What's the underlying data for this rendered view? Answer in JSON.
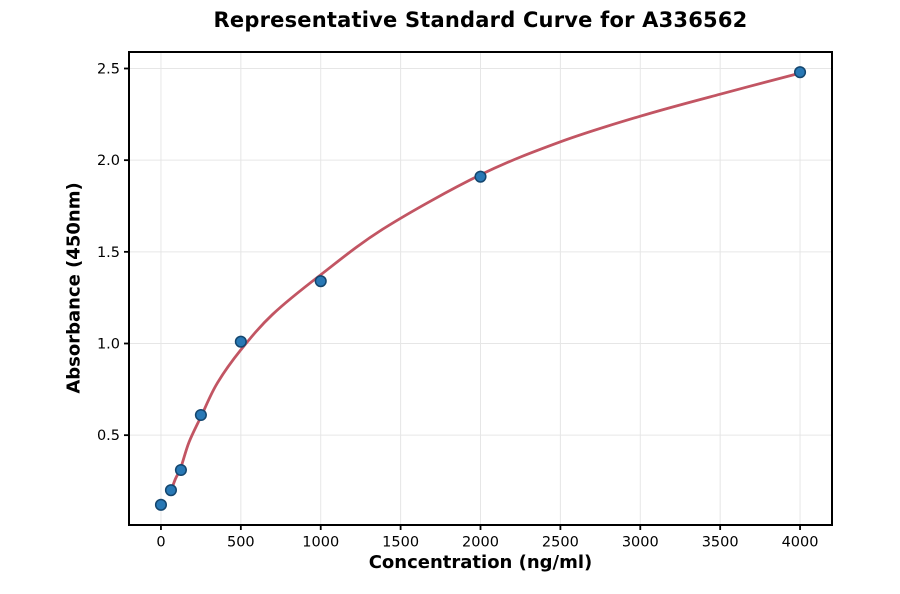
{
  "chart_data": {
    "type": "scatter",
    "title": "Representative Standard Curve for A336562",
    "xlabel": "Concentration (ng/ml)",
    "ylabel": "Absorbance (450nm)",
    "series": [
      {
        "name": "standard-points",
        "points": [
          {
            "x": 0,
            "y": 0.12
          },
          {
            "x": 62.5,
            "y": 0.2
          },
          {
            "x": 125,
            "y": 0.31
          },
          {
            "x": 250,
            "y": 0.61
          },
          {
            "x": 500,
            "y": 1.01
          },
          {
            "x": 1000,
            "y": 1.34
          },
          {
            "x": 2000,
            "y": 1.91
          },
          {
            "x": 4000,
            "y": 2.48
          }
        ]
      }
    ],
    "fit_curve": [
      [
        62.5,
        0.195
      ],
      [
        90,
        0.26
      ],
      [
        125,
        0.325
      ],
      [
        175,
        0.46
      ],
      [
        250,
        0.6
      ],
      [
        350,
        0.78
      ],
      [
        500,
        0.965
      ],
      [
        700,
        1.16
      ],
      [
        1000,
        1.375
      ],
      [
        1400,
        1.63
      ],
      [
        2000,
        1.92
      ],
      [
        2500,
        2.1
      ],
      [
        3000,
        2.24
      ],
      [
        3500,
        2.36
      ],
      [
        4000,
        2.475
      ]
    ],
    "xlim": [
      -200,
      4200
    ],
    "ylim": [
      0.01,
      2.59
    ],
    "x_ticks": [
      {
        "v": 0,
        "label": "0"
      },
      {
        "v": 500,
        "label": "500"
      },
      {
        "v": 1000,
        "label": "1000"
      },
      {
        "v": 1500,
        "label": "1500"
      },
      {
        "v": 2000,
        "label": "2000"
      },
      {
        "v": 2500,
        "label": "2500"
      },
      {
        "v": 3000,
        "label": "3000"
      },
      {
        "v": 3500,
        "label": "3500"
      },
      {
        "v": 4000,
        "label": "4000"
      }
    ],
    "y_ticks": [
      {
        "v": 0.5,
        "label": "0.5"
      },
      {
        "v": 1.0,
        "label": "1.0"
      },
      {
        "v": 1.5,
        "label": "1.5"
      },
      {
        "v": 2.0,
        "label": "2.0"
      },
      {
        "v": 2.5,
        "label": "2.5"
      }
    ],
    "grid": true,
    "colors": {
      "curve": "#c25563",
      "marker_fill": "#2878b5",
      "marker_edge": "#14466e",
      "grid": "#e6e6e6",
      "axis": "#000000",
      "text": "#000000"
    }
  }
}
